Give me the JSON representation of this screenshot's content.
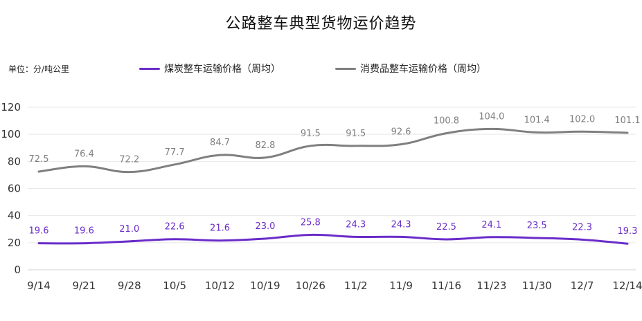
{
  "chart_data": {
    "type": "line",
    "title": "公路整车典型货物运价趋势",
    "unit_label": "单位：分/吨公里",
    "categories": [
      "9/14",
      "9/21",
      "9/28",
      "10/5",
      "10/12",
      "10/19",
      "10/26",
      "11/2",
      "11/9",
      "11/16",
      "11/23",
      "11/30",
      "12/7",
      "12/14"
    ],
    "ylim": [
      0,
      120
    ],
    "yticks": [
      "0",
      "20",
      "40",
      "60",
      "80",
      "100",
      "120"
    ],
    "grid": true,
    "legend_position": "top",
    "series": [
      {
        "name": "煤炭整车运输价格（周均）",
        "color": "#6a2cc9",
        "values": [
          19.6,
          19.6,
          21.0,
          22.6,
          21.6,
          23.0,
          25.8,
          24.3,
          24.3,
          22.5,
          24.1,
          23.5,
          22.3,
          19.3
        ],
        "labels": [
          "19.6",
          "19.6",
          "21.0",
          "22.6",
          "21.6",
          "23.0",
          "25.8",
          "24.3",
          "24.3",
          "22.5",
          "24.1",
          "23.5",
          "22.3",
          "19.3"
        ]
      },
      {
        "name": "消费品整车运输价格（周均）",
        "color": "#7f7f7f",
        "values": [
          72.5,
          76.4,
          72.2,
          77.7,
          84.7,
          82.8,
          91.5,
          91.5,
          92.6,
          100.8,
          104.0,
          101.4,
          102.0,
          101.1
        ],
        "labels": [
          "72.5",
          "76.4",
          "72.2",
          "77.7",
          "84.7",
          "82.8",
          "91.5",
          "91.5",
          "92.6",
          "100.8",
          "104.0",
          "101.4",
          "102.0",
          "101.1"
        ]
      }
    ]
  }
}
